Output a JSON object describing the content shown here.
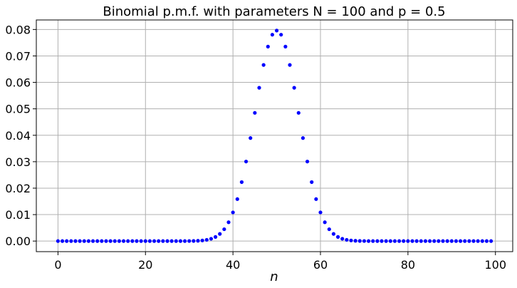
{
  "chart_data": {
    "type": "scatter",
    "title": "Binomial p.m.f. with parameters N = 100 and p = 0.5",
    "xlabel": "n",
    "ylabel": "",
    "xlim": [
      -4.95,
      103.95
    ],
    "ylim": [
      -0.004,
      0.0836
    ],
    "xticks": [
      0,
      20,
      40,
      60,
      80,
      100
    ],
    "yticks": [
      0.0,
      0.01,
      0.02,
      0.03,
      0.04,
      0.05,
      0.06,
      0.07,
      0.08
    ],
    "xtick_labels": [
      "0",
      "20",
      "40",
      "60",
      "80",
      "100"
    ],
    "ytick_labels": [
      "0.00",
      "0.01",
      "0.02",
      "0.03",
      "0.04",
      "0.05",
      "0.06",
      "0.07",
      "0.08"
    ],
    "grid": true,
    "marker_color": "#0000ff",
    "series": [
      {
        "x": [
          0,
          1,
          2,
          3,
          4,
          5,
          6,
          7,
          8,
          9,
          10,
          11,
          12,
          13,
          14,
          15,
          16,
          17,
          18,
          19,
          20,
          21,
          22,
          23,
          24,
          25,
          26,
          27,
          28,
          29,
          30,
          31,
          32,
          33,
          34,
          35,
          36,
          37,
          38,
          39,
          40,
          41,
          42,
          43,
          44,
          45,
          46,
          47,
          48,
          49,
          50,
          51,
          52,
          53,
          54,
          55,
          56,
          57,
          58,
          59,
          60,
          61,
          62,
          63,
          64,
          65,
          66,
          67,
          68,
          69,
          70,
          71,
          72,
          73,
          74,
          75,
          76,
          77,
          78,
          79,
          80,
          81,
          82,
          83,
          84,
          85,
          86,
          87,
          88,
          89,
          90,
          91,
          92,
          93,
          94,
          95,
          96,
          97,
          98,
          99
        ],
        "y": [
          0,
          0,
          0,
          0,
          0,
          0,
          0,
          0,
          0,
          0,
          0,
          0,
          0,
          0,
          0,
          0,
          0,
          0,
          0,
          0,
          0,
          0,
          0,
          0,
          0,
          0,
          0,
          0,
          0,
          0,
          2e-05,
          5e-05,
          0.00011,
          0.00023,
          0.00046,
          0.00086,
          0.00156,
          0.0027,
          0.00447,
          0.00711,
          0.01084,
          0.01587,
          0.02229,
          0.03007,
          0.03895,
          0.04847,
          0.05796,
          0.06659,
          0.07353,
          0.07803,
          0.07959,
          0.07803,
          0.07353,
          0.06659,
          0.05796,
          0.04847,
          0.03895,
          0.03007,
          0.02229,
          0.01587,
          0.01084,
          0.00711,
          0.00447,
          0.0027,
          0.00156,
          0.00086,
          0.00046,
          0.00023,
          0.00011,
          5e-05,
          2e-05,
          0,
          0,
          0,
          0,
          0,
          0,
          0,
          0,
          0,
          0,
          0,
          0,
          0,
          0,
          0,
          0,
          0,
          0,
          0,
          0,
          0,
          0,
          0,
          0,
          0,
          0,
          0,
          0,
          0
        ]
      }
    ]
  }
}
